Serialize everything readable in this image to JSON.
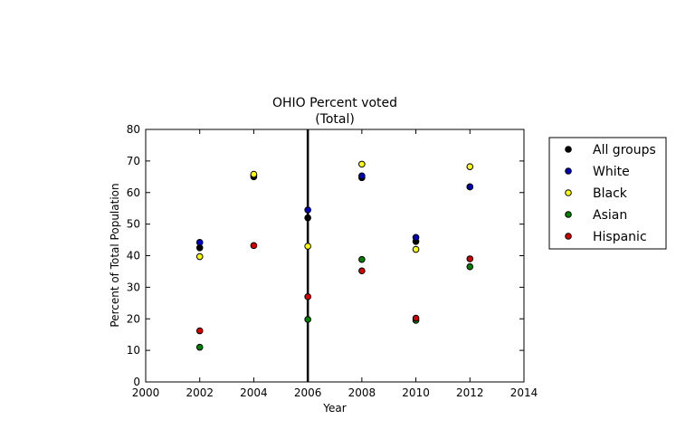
{
  "chart_data": {
    "type": "scatter",
    "title": "OHIO Percent voted",
    "subtitle": "(Total)",
    "xlabel": "Year",
    "ylabel": "Percent of Total Population",
    "xlim": [
      2000,
      2014
    ],
    "ylim": [
      0,
      80
    ],
    "xticks": [
      "2000",
      "2002",
      "2004",
      "2006",
      "2008",
      "2010",
      "2012",
      "2014"
    ],
    "yticks": [
      "0",
      "10",
      "20",
      "30",
      "40",
      "50",
      "60",
      "70",
      "80"
    ],
    "vline_x": 2006,
    "legend_position": "outside-right",
    "grid": false,
    "series": [
      {
        "name": "All groups",
        "color": "#000000",
        "x": [
          2002,
          2004,
          2006,
          2008,
          2010,
          2012
        ],
        "y": [
          42.5,
          65.0,
          52.0,
          64.7,
          44.5,
          61.8
        ]
      },
      {
        "name": "White",
        "color": "#0000bf",
        "x": [
          2002,
          2004,
          2006,
          2008,
          2010,
          2012
        ],
        "y": [
          44.2,
          65.5,
          54.5,
          65.3,
          45.8,
          61.8
        ]
      },
      {
        "name": "Black",
        "color": "#ffff00",
        "x": [
          2002,
          2004,
          2006,
          2008,
          2010,
          2012
        ],
        "y": [
          39.7,
          65.8,
          43.0,
          69.0,
          42.0,
          68.2
        ]
      },
      {
        "name": "Asian",
        "color": "#007f00",
        "x": [
          2002,
          2006,
          2008,
          2010,
          2012
        ],
        "y": [
          11.0,
          19.8,
          38.8,
          19.5,
          36.5
        ]
      },
      {
        "name": "Hispanic",
        "color": "#d40000",
        "x": [
          2002,
          2004,
          2006,
          2008,
          2010,
          2012
        ],
        "y": [
          16.2,
          43.2,
          27.0,
          35.2,
          20.2,
          39.0
        ]
      }
    ]
  }
}
